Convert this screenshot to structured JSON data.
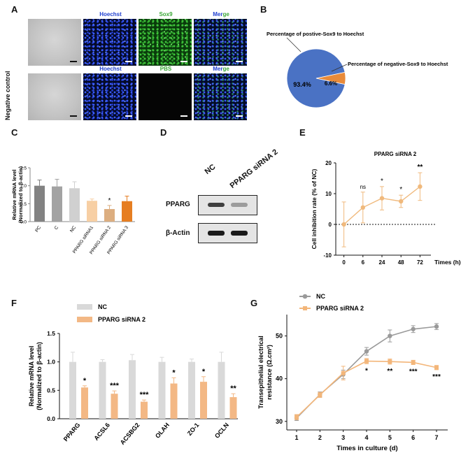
{
  "panelA": {
    "label": "A",
    "row1_titles": [
      "Hoechst",
      "Sox9",
      "Merge"
    ],
    "row2_titles": [
      "Hoechst",
      "PBS",
      "Merge"
    ],
    "row2_side_label": "Negative control",
    "colors": {
      "hoechst": "#1f3fd0",
      "sox9": "#3aa836",
      "merge_a": "#1f3fd0",
      "merge_b": "#3aa836",
      "scalebar": "#ffffff"
    }
  },
  "panelB": {
    "label": "B",
    "chart_data": {
      "type": "pie",
      "slices": [
        {
          "name": "Percentage of postive-Sox9 to Hoechst",
          "value": 93.4,
          "label": "93.4%",
          "color": "#4a72c4"
        },
        {
          "name": "Percentage of negative-Sox9 to Hoechst",
          "value": 6.6,
          "label": "6.6%",
          "color": "#e98b3a"
        }
      ]
    }
  },
  "panelC": {
    "label": "C",
    "chart_data": {
      "type": "bar",
      "categories": [
        "PC",
        "C",
        "NC",
        "PPARG siRNA1",
        "PPARG siRNA 2",
        "PPARG siRNA 3"
      ],
      "values": [
        1.0,
        0.98,
        0.93,
        0.58,
        0.35,
        0.57
      ],
      "errors": [
        0.16,
        0.2,
        0.18,
        0.05,
        0.1,
        0.14
      ],
      "colors": [
        "#828282",
        "#a3a3a3",
        "#d0d0d0",
        "#f7cfa4",
        "#dcae80",
        "#e67e22"
      ],
      "significance": [
        "",
        "",
        "",
        "",
        "*",
        ""
      ],
      "ylabel": "Relative mRNA level\n(Normalized to β-actin)",
      "ylim": [
        0,
        1.5
      ],
      "yticks": [
        "0.0",
        "0.5",
        "1.0",
        "1.5"
      ]
    }
  },
  "panelD": {
    "label": "D",
    "columns": [
      "NC",
      "PPARG siRNA 2"
    ],
    "rows": [
      "PPARG",
      "β-Actin"
    ],
    "band_intensity": {
      "PPARG": [
        0.85,
        0.45
      ],
      "β-Actin": [
        0.9,
        0.9
      ]
    }
  },
  "panelE": {
    "label": "E",
    "chart_data": {
      "type": "line",
      "title": "PPARG siRNA 2",
      "categories": [
        "0",
        "6",
        "24",
        "48",
        "72"
      ],
      "values": [
        0,
        5.5,
        8.5,
        7.5,
        12.3
      ],
      "errors": [
        7.3,
        5.0,
        3.8,
        2.0,
        4.5
      ],
      "significance": [
        "",
        "ns",
        "*",
        "*",
        "**"
      ],
      "ylabel": "Cell inhibition rate (% of NC)",
      "xlabel": "Times (h)",
      "ylim": [
        -10,
        20
      ],
      "yticks": [
        "-10",
        "0",
        "10",
        "20"
      ],
      "color": "#f0b97c"
    }
  },
  "panelF": {
    "label": "F",
    "chart_data": {
      "type": "bar",
      "categories": [
        "PPARG",
        "ACSL6",
        "ACSBG2",
        "OLAH",
        "ZO-1",
        "OCLN"
      ],
      "series": [
        {
          "name": "NC",
          "values": [
            1.0,
            1.0,
            1.03,
            1.0,
            1.0,
            1.0
          ],
          "errors": [
            0.17,
            0.04,
            0.1,
            0.08,
            0.05,
            0.17
          ],
          "color": "#d9d9d9"
        },
        {
          "name": "PPARG siRNA 2",
          "values": [
            0.55,
            0.44,
            0.3,
            0.62,
            0.65,
            0.38
          ],
          "errors": [
            0.03,
            0.05,
            0.03,
            0.1,
            0.09,
            0.06
          ],
          "color": "#f3b885"
        }
      ],
      "significance": [
        "*",
        "***",
        "***",
        "*",
        "*",
        "**"
      ],
      "ylabel": "Relative mRNA level\n(Normalized to β-actin)",
      "ylim": [
        0,
        1.5
      ],
      "yticks": [
        "0.0",
        "0.5",
        "1.0",
        "1.5"
      ]
    }
  },
  "panelG": {
    "label": "G",
    "chart_data": {
      "type": "line",
      "x": [
        1,
        2,
        3,
        4,
        5,
        6,
        7
      ],
      "series": [
        {
          "name": "NC",
          "values": [
            30.8,
            36.3,
            41.0,
            46.4,
            50.0,
            51.6,
            52.2
          ],
          "errors": [
            0.6,
            0.6,
            1.0,
            0.9,
            1.4,
            0.8,
            0.7
          ],
          "color": "#9a9a9a"
        },
        {
          "name": "PPARG siRNA 2",
          "values": [
            31.0,
            36.2,
            41.3,
            44.1,
            44.0,
            43.8,
            42.6
          ],
          "errors": [
            0.6,
            0.6,
            1.6,
            0.6,
            0.6,
            0.5,
            0.5
          ],
          "color": "#f3b67a"
        }
      ],
      "significance": [
        "",
        "",
        "",
        "*",
        "**",
        "***",
        "***"
      ],
      "ylabel": "Transepithelial electrical\nresistance (Ω.cm²)",
      "xlabel": "Times in culture (d)",
      "ylim": [
        28,
        55
      ],
      "yticks": [
        "30",
        "40",
        "50"
      ],
      "xticks": [
        "1",
        "2",
        "3",
        "4",
        "5",
        "6",
        "7"
      ]
    }
  }
}
